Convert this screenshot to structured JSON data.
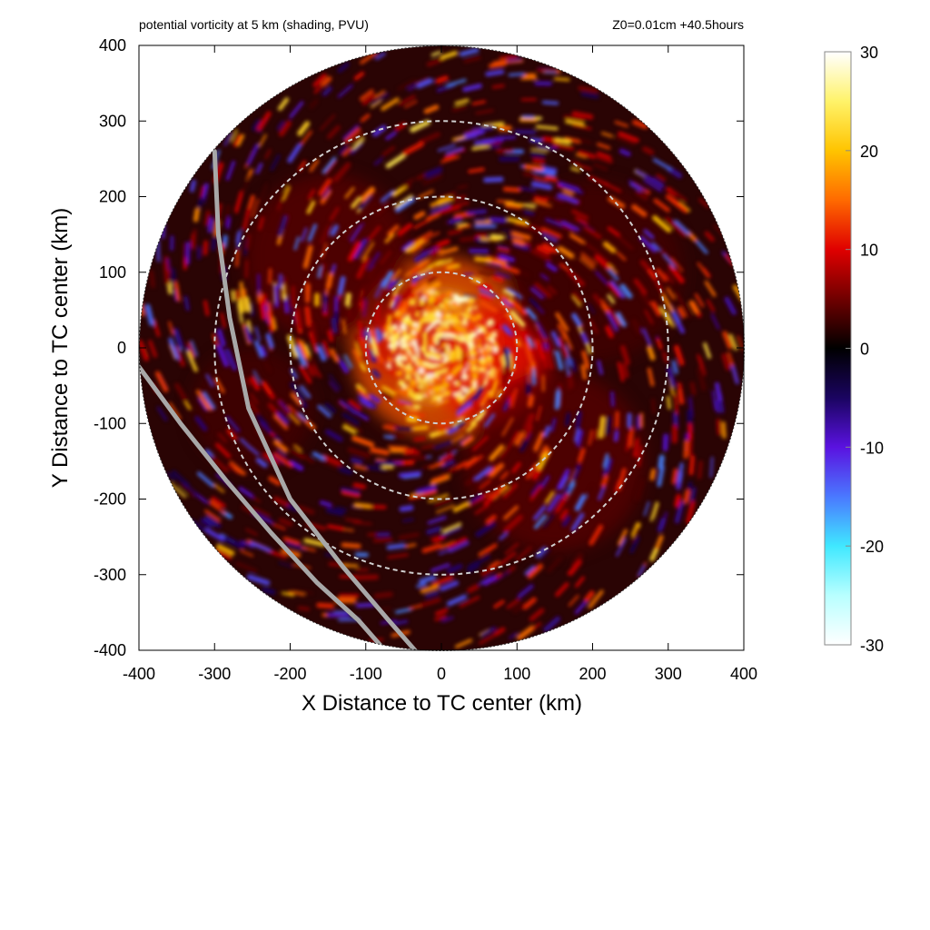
{
  "header": {
    "left": "potential vorticity at 5 km (shading, PVU)",
    "right": "Z0=0.01cm  +40.5hours"
  },
  "chart_data": {
    "type": "heatmap",
    "title": "potential vorticity at 5 km (shading, PVU)",
    "annotation": "Z0=0.01cm  +40.5hours",
    "xlabel": "X Distance to TC center (km)",
    "ylabel": "Y Distance to TC center (km)",
    "xlim": [
      -400,
      400
    ],
    "ylim": [
      -400,
      400
    ],
    "xticks": [
      -400,
      -300,
      -200,
      -100,
      0,
      100,
      200,
      300,
      400
    ],
    "yticks": [
      -400,
      -300,
      -200,
      -100,
      0,
      100,
      200,
      300,
      400
    ],
    "xtick_labels": [
      "-400",
      "-300",
      "-200",
      "-100",
      "0",
      "100",
      "200",
      "300",
      "400"
    ],
    "ytick_labels": [
      "-400",
      "-300",
      "-200",
      "-100",
      "0",
      "100",
      "200",
      "300",
      "400"
    ],
    "domain_radius_km": 400,
    "range_rings_km": [
      100,
      200,
      300
    ],
    "colorbar": {
      "range": [
        -30,
        30
      ],
      "ticks": [
        30,
        20,
        10,
        0,
        -10,
        -20,
        -30
      ],
      "tick_labels": [
        "30",
        "20",
        "10",
        "0",
        "-10",
        "-20",
        "-30"
      ],
      "stops": [
        {
          "value": -30,
          "color": "#ffffff"
        },
        {
          "value": -25,
          "color": "#b8ffff"
        },
        {
          "value": -20,
          "color": "#40e8ff"
        },
        {
          "value": -15,
          "color": "#4a78ff"
        },
        {
          "value": -10,
          "color": "#5a12e0"
        },
        {
          "value": -5,
          "color": "#1a0460"
        },
        {
          "value": 0,
          "color": "#000000"
        },
        {
          "value": 5,
          "color": "#700000"
        },
        {
          "value": 10,
          "color": "#e00000"
        },
        {
          "value": 15,
          "color": "#ff6a00"
        },
        {
          "value": 20,
          "color": "#ffc400"
        },
        {
          "value": 25,
          "color": "#fff36a"
        },
        {
          "value": 30,
          "color": "#ffffff"
        }
      ]
    },
    "track_lines": [
      {
        "points": [
          [
            -300,
            260
          ],
          [
            -295,
            150
          ],
          [
            -280,
            40
          ],
          [
            -255,
            -80
          ],
          [
            -200,
            -200
          ],
          [
            -130,
            -290
          ],
          [
            -70,
            -360
          ],
          [
            -35,
            -400
          ]
        ]
      },
      {
        "points": [
          [
            -400,
            -25
          ],
          [
            -345,
            -100
          ],
          [
            -285,
            -175
          ],
          [
            -225,
            -245
          ],
          [
            -165,
            -310
          ],
          [
            -110,
            -360
          ],
          [
            -75,
            -400
          ]
        ]
      }
    ],
    "colors": {
      "background_field": "#2a0404",
      "range_ring": "#d0d0d0",
      "track_line": "#a8a8a8"
    }
  }
}
